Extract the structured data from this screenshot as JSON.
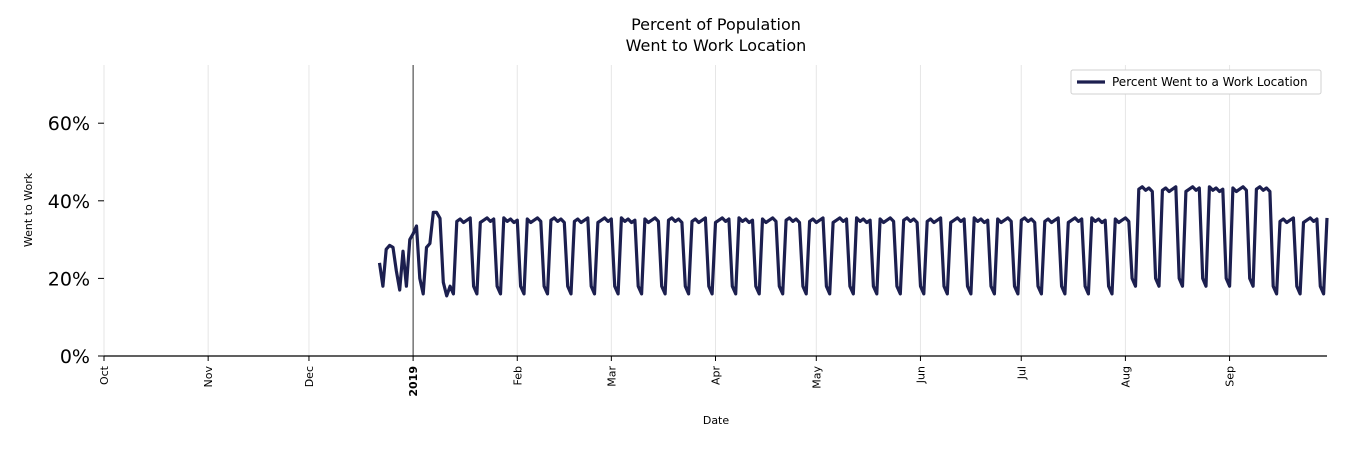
{
  "chart_data": {
    "type": "line",
    "title_lines": [
      "Percent of Population",
      "Went to Work Location"
    ],
    "xlabel": "Date",
    "ylabel": "Went to Work",
    "x_range": [
      "2018-10-01",
      "2019-09-30"
    ],
    "ylim": [
      0,
      75
    ],
    "yticks": [
      0,
      20,
      40,
      60
    ],
    "ytick_labels": [
      "0%",
      "20%",
      "40%",
      "60%"
    ],
    "x_ticks": [
      {
        "date": "2018-10-01",
        "label": "Oct",
        "bold": false
      },
      {
        "date": "2018-11-01",
        "label": "Nov",
        "bold": false
      },
      {
        "date": "2018-12-01",
        "label": "Dec",
        "bold": false
      },
      {
        "date": "2019-01-01",
        "label": "2019",
        "bold": true
      },
      {
        "date": "2019-02-01",
        "label": "Feb",
        "bold": false
      },
      {
        "date": "2019-03-01",
        "label": "Mar",
        "bold": false
      },
      {
        "date": "2019-04-01",
        "label": "Apr",
        "bold": false
      },
      {
        "date": "2019-05-01",
        "label": "May",
        "bold": false
      },
      {
        "date": "2019-06-01",
        "label": "Jun",
        "bold": false
      },
      {
        "date": "2019-07-01",
        "label": "Jul",
        "bold": false
      },
      {
        "date": "2019-08-01",
        "label": "Aug",
        "bold": false
      },
      {
        "date": "2019-09-01",
        "label": "Sep",
        "bold": false
      }
    ],
    "vline_date": "2019-01-01",
    "legend": {
      "label": "Percent Went to a Work Location",
      "placement": "top-right"
    },
    "series": [
      {
        "name": "Percent Went to a Work Location",
        "color": "#1c1f4f",
        "start_date": "2018-12-22",
        "base_pattern": {
          "note": "Daily values; week begins on Saturday. Weekend days low, weekdays high.",
          "weekday_value": 35,
          "weekend_values": [
            18,
            16
          ]
        },
        "early_values": [
          24,
          18,
          27.5,
          28.5,
          28,
          22,
          17,
          27,
          18,
          30,
          31.5,
          33.5,
          20,
          16,
          28,
          29,
          37,
          37,
          35.5,
          19,
          15.5
        ],
        "overrides": [
          {
            "from": "2019-08-03",
            "to": "2019-09-13",
            "weekday_value": 43,
            "weekend_values": [
              20,
              18
            ]
          }
        ]
      }
    ]
  }
}
